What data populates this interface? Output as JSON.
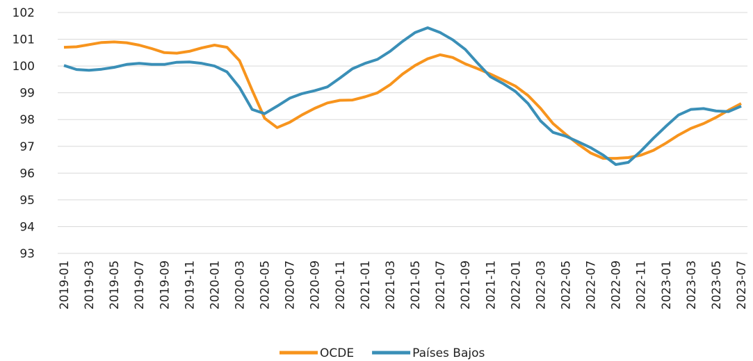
{
  "chart_data": {
    "type": "line",
    "categories": [
      "2019-01",
      null,
      "2019-03",
      null,
      "2019-05",
      null,
      "2019-07",
      null,
      "2019-09",
      null,
      "2019-11",
      null,
      "2020-01",
      null,
      "2020-03",
      null,
      "2020-05",
      null,
      "2020-07",
      null,
      "2020-09",
      null,
      "2020-11",
      null,
      "2021-01",
      null,
      "2021-03",
      null,
      "2021-05",
      null,
      "2021-07",
      null,
      "2021-09",
      null,
      "2021-11",
      null,
      "2022-01",
      null,
      "2022-03",
      null,
      "2022-05",
      null,
      "2022-07",
      null,
      "2022-09",
      null,
      "2022-11",
      null,
      "2023-01",
      null,
      "2023-03",
      null,
      "2023-05",
      null,
      "2023-07"
    ],
    "series": [
      {
        "name": "OCDE",
        "color": "#f7941d",
        "values": [
          100.7,
          100.72,
          100.8,
          100.88,
          100.9,
          100.87,
          100.78,
          100.65,
          100.5,
          100.48,
          100.55,
          100.68,
          100.78,
          100.7,
          100.2,
          99.1,
          98.05,
          97.7,
          97.9,
          98.18,
          98.42,
          98.62,
          98.72,
          98.73,
          98.85,
          99.0,
          99.3,
          99.7,
          100.02,
          100.27,
          100.42,
          100.32,
          100.08,
          99.9,
          99.7,
          99.48,
          99.25,
          98.9,
          98.42,
          97.85,
          97.45,
          97.08,
          96.75,
          96.55,
          96.55,
          96.58,
          96.67,
          96.85,
          97.12,
          97.42,
          97.67,
          97.85,
          98.08,
          98.35,
          98.6
        ]
      },
      {
        "name": "Países Bajos",
        "color": "#3a8fb7",
        "values": [
          100.02,
          99.87,
          99.84,
          99.88,
          99.95,
          100.06,
          100.1,
          100.06,
          100.06,
          100.14,
          100.15,
          100.1,
          100.0,
          99.78,
          99.2,
          98.38,
          98.22,
          98.5,
          98.8,
          98.97,
          99.08,
          99.22,
          99.55,
          99.9,
          100.1,
          100.25,
          100.55,
          100.92,
          101.25,
          101.43,
          101.25,
          100.98,
          100.62,
          100.1,
          99.6,
          99.35,
          99.05,
          98.6,
          97.95,
          97.52,
          97.38,
          97.17,
          96.95,
          96.67,
          96.32,
          96.4,
          96.82,
          97.3,
          97.75,
          98.17,
          98.38,
          98.41,
          98.32,
          98.3,
          98.5
        ]
      }
    ],
    "ylim": [
      93,
      102
    ],
    "yticks": [
      93,
      94,
      95,
      96,
      97,
      98,
      99,
      100,
      101,
      102
    ],
    "grid": true,
    "legend": "bottom"
  }
}
